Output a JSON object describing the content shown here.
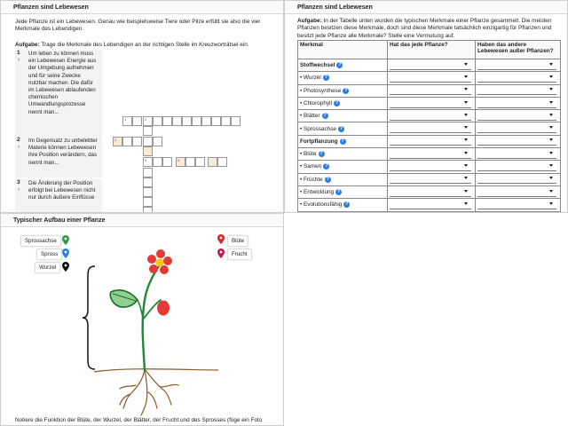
{
  "panel1": {
    "title": "Pflanzen sind Lebewesen",
    "intro": "Jede Pflanze ist ein Lebewesen. Genau wie beispielsweise Tiere oder Pilze erfüllt sie also die vier Merkmale des Lebendigen.",
    "task_label": "Aufgabe:",
    "task_text": " Trage die Merkmale des Lebendigen an der richtigen Stelle im Kreuzworträtsel ein.",
    "clues": [
      {
        "num": "1",
        "text": "Um leben zu können muss ein Lebewesen Energie aus der Umgebung aufnehmen und für seine Zwecke nutzbar machen. Die dafür im Lebewesen ablaufenden chemischen Umwandlungsprozesse nennt man..."
      },
      {
        "num": "2",
        "text": "Im Gegensatz zu unbelebter Materie können Lebewesen ihre Position verändern, das nennt man..."
      },
      {
        "num": "3",
        "text": "Die Änderung der Position erfolgt bei Lebewesen nicht nur durch äußere Einflüsse"
      }
    ],
    "arrow": "›",
    "cell_numbers": [
      "1",
      "2",
      "3",
      "4"
    ]
  },
  "panel2": {
    "title": "Pflanzen sind Lebewesen",
    "task_label": "Aufgabe:",
    "task_text": " In der Tabelle unten wurden die typischen Merkmale einer Pflanze gesammelt. Die meisten Pflanzen besitzen diese Merkmale, doch sind diese Merkmale tatsächlich einzigartig für Pflanzen und besitzt jede Pflanze alle Merkmale? Stelle eine Vermutung auf.",
    "headers": [
      "Merkmal",
      "Hat das jede Pflanze?",
      "Haben das andere Lebewesen außer Pflanzen?"
    ],
    "rows": [
      {
        "label": "Stoffwechsel",
        "group": true
      },
      {
        "label": "Wurzel",
        "group": false
      },
      {
        "label": "Photosynthese",
        "group": false
      },
      {
        "label": "Chlorophyll",
        "group": false
      },
      {
        "label": "Blätter",
        "group": false
      },
      {
        "label": "Sprossachse",
        "group": false
      },
      {
        "label": "Fortpflanzung",
        "group": true
      },
      {
        "label": "Blüte",
        "group": false
      },
      {
        "label": "Samen",
        "group": false
      },
      {
        "label": "Früchte",
        "group": false
      },
      {
        "label": "Entwicklung",
        "group": false
      },
      {
        "label": "Evolutionsfähig",
        "group": false
      }
    ],
    "info_glyph": "?"
  },
  "panel3": {
    "title": "Typischer Aufbau einer Pflanze",
    "labels_left": [
      "Sprossachse",
      "Spross",
      "Wurzel"
    ],
    "labels_right": [
      "Blüte",
      "Frucht"
    ],
    "pin_colors": {
      "sprossachse": "#2e9b3a",
      "spross": "#2a7de1",
      "wurzel": "#111111",
      "bluete": "#d62828",
      "frucht": "#c2185b"
    },
    "footer": "Notiere die Funktion der Blüte, der Wurzel, der Blätter, der Frucht und des Sprosses (füge ein Foto"
  }
}
